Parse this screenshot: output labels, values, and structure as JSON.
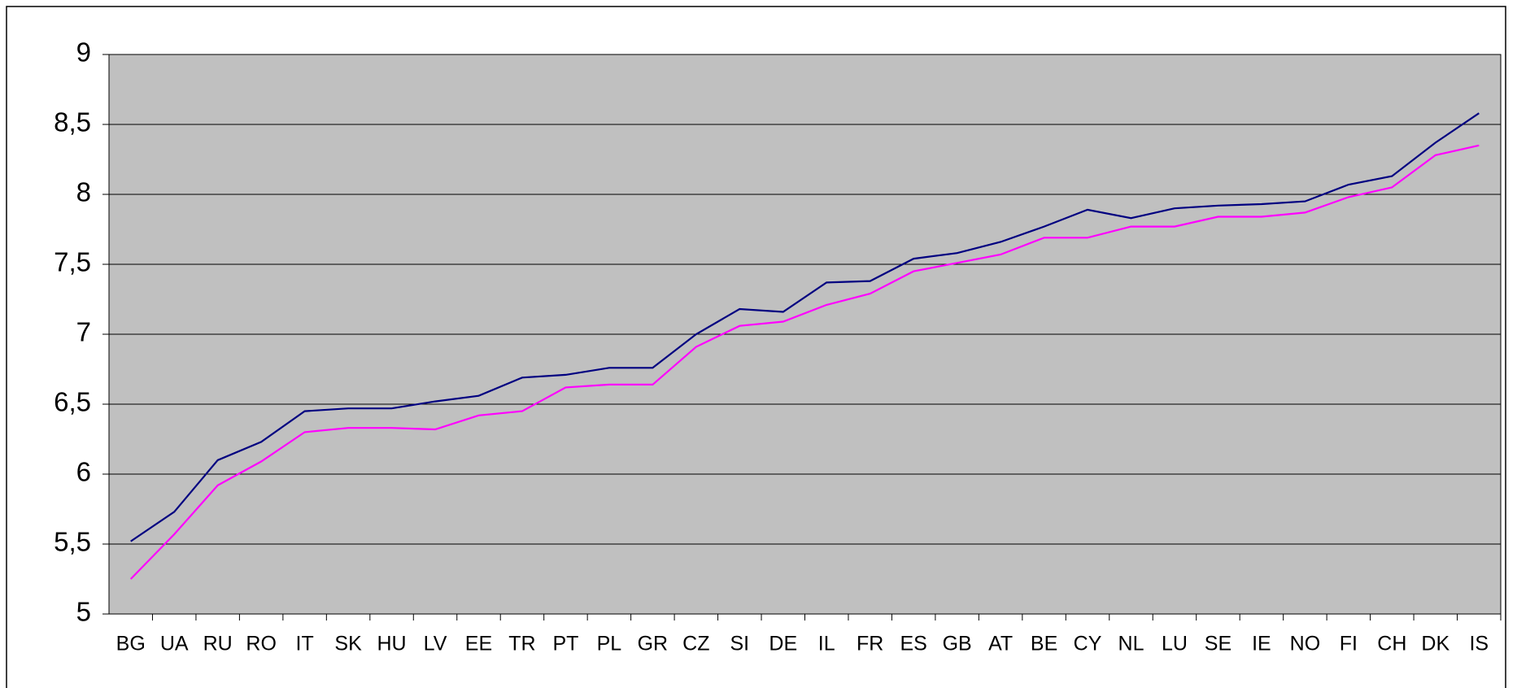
{
  "chart_data": {
    "type": "line",
    "categories": [
      "BG",
      "UA",
      "RU",
      "RO",
      "IT",
      "SK",
      "HU",
      "LV",
      "EE",
      "TR",
      "PT",
      "PL",
      "GR",
      "CZ",
      "SI",
      "DE",
      "IL",
      "FR",
      "ES",
      "GB",
      "AT",
      "BE",
      "CY",
      "NL",
      "LU",
      "SE",
      "IE",
      "NO",
      "FI",
      "CH",
      "DK",
      "IS"
    ],
    "series": [
      {
        "color": "#000080",
        "values": [
          5.52,
          5.73,
          6.1,
          6.23,
          6.45,
          6.47,
          6.47,
          6.52,
          6.56,
          6.69,
          6.71,
          6.76,
          6.76,
          7.0,
          7.18,
          7.16,
          7.37,
          7.38,
          7.54,
          7.58,
          7.66,
          7.77,
          7.89,
          7.83,
          7.9,
          7.92,
          7.93,
          7.95,
          8.07,
          8.13,
          8.37,
          8.58
        ]
      },
      {
        "color": "#ff00ff",
        "values": [
          5.25,
          5.57,
          5.92,
          6.09,
          6.3,
          6.33,
          6.33,
          6.32,
          6.42,
          6.45,
          6.62,
          6.64,
          6.64,
          6.91,
          7.06,
          7.09,
          7.21,
          7.29,
          7.45,
          7.51,
          7.57,
          7.69,
          7.69,
          7.77,
          7.77,
          7.84,
          7.84,
          7.87,
          7.98,
          8.05,
          8.28,
          8.35
        ]
      }
    ],
    "ylim": [
      5,
      9
    ],
    "yticks": [
      5,
      {
        "value": 5.5,
        "label": "5,5"
      },
      6,
      {
        "value": 6.5,
        "label": "6,5"
      },
      7,
      {
        "value": 7.5,
        "label": "7,5"
      },
      8,
      {
        "value": 8.5,
        "label": "8,5"
      },
      9
    ],
    "grid": true,
    "plot_background": "#c0c0c0"
  }
}
